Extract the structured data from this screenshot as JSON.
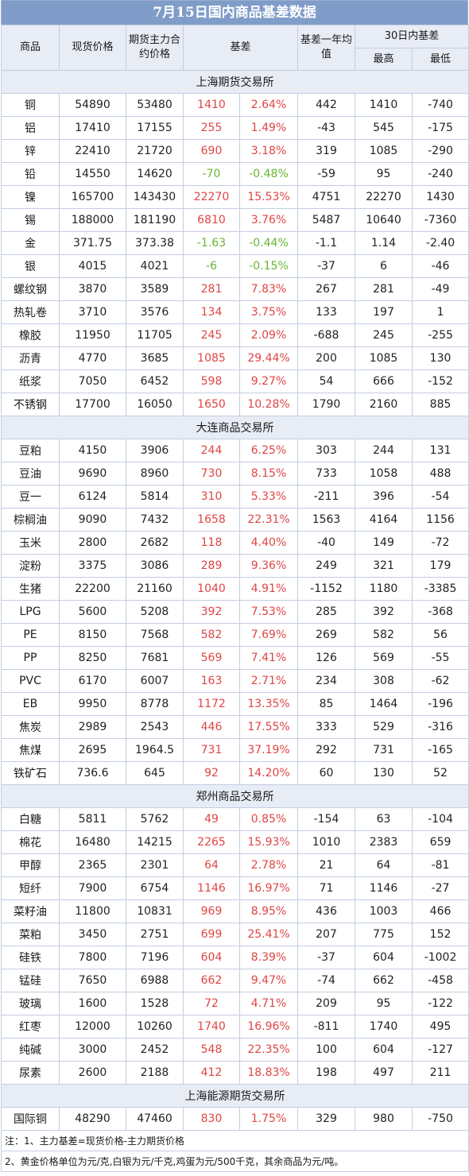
{
  "title": "7月15日国内商品基差数据",
  "headers": {
    "commodity": "商品",
    "spot": "现货价格",
    "futures": "期货主力合约价格",
    "basis": "基差",
    "avg_year": "基差一年均值",
    "range30": "30日内基差",
    "high": "最高",
    "low": "最低"
  },
  "colors": {
    "positive": "#e04545",
    "negative": "#66b533",
    "header_bg": "#7f9dc8"
  },
  "sections": [
    {
      "name": "上海期货交易所",
      "rows": [
        [
          "铜",
          "54890",
          "53480",
          "1410",
          "2.64%",
          "442",
          "1410",
          "-740"
        ],
        [
          "铝",
          "17410",
          "17155",
          "255",
          "1.49%",
          "-43",
          "545",
          "-175"
        ],
        [
          "锌",
          "22410",
          "21720",
          "690",
          "3.18%",
          "319",
          "1085",
          "-290"
        ],
        [
          "铅",
          "14550",
          "14620",
          "-70",
          "-0.48%",
          "-59",
          "95",
          "-240"
        ],
        [
          "镍",
          "165700",
          "143430",
          "22270",
          "15.53%",
          "4751",
          "22270",
          "1430"
        ],
        [
          "锡",
          "188000",
          "181190",
          "6810",
          "3.76%",
          "5487",
          "10640",
          "-7360"
        ],
        [
          "金",
          "371.75",
          "373.38",
          "-1.63",
          "-0.44%",
          "-1.1",
          "1.14",
          "-2.40"
        ],
        [
          "银",
          "4015",
          "4021",
          "-6",
          "-0.15%",
          "-37",
          "6",
          "-46"
        ],
        [
          "螺纹钢",
          "3870",
          "3589",
          "281",
          "7.83%",
          "267",
          "281",
          "-49"
        ],
        [
          "热轧卷",
          "3710",
          "3576",
          "134",
          "3.75%",
          "133",
          "197",
          "1"
        ],
        [
          "橡胶",
          "11950",
          "11705",
          "245",
          "2.09%",
          "-688",
          "245",
          "-255"
        ],
        [
          "沥青",
          "4770",
          "3685",
          "1085",
          "29.44%",
          "200",
          "1085",
          "130"
        ],
        [
          "纸浆",
          "7050",
          "6452",
          "598",
          "9.27%",
          "54",
          "666",
          "-152"
        ],
        [
          "不锈钢",
          "17700",
          "16050",
          "1650",
          "10.28%",
          "1790",
          "2160",
          "885"
        ]
      ]
    },
    {
      "name": "大连商品交易所",
      "rows": [
        [
          "豆粕",
          "4150",
          "3906",
          "244",
          "6.25%",
          "303",
          "244",
          "131"
        ],
        [
          "豆油",
          "9690",
          "8960",
          "730",
          "8.15%",
          "733",
          "1058",
          "488"
        ],
        [
          "豆一",
          "6124",
          "5814",
          "310",
          "5.33%",
          "-211",
          "396",
          "-54"
        ],
        [
          "棕榈油",
          "9090",
          "7432",
          "1658",
          "22.31%",
          "1563",
          "4164",
          "1156"
        ],
        [
          "玉米",
          "2800",
          "2682",
          "118",
          "4.40%",
          "-40",
          "149",
          "-72"
        ],
        [
          "淀粉",
          "3375",
          "3086",
          "289",
          "9.36%",
          "249",
          "321",
          "179"
        ],
        [
          "生猪",
          "22200",
          "21160",
          "1040",
          "4.91%",
          "-1152",
          "1180",
          "-3385"
        ],
        [
          "LPG",
          "5600",
          "5208",
          "392",
          "7.53%",
          "285",
          "392",
          "-368"
        ],
        [
          "PE",
          "8150",
          "7568",
          "582",
          "7.69%",
          "269",
          "582",
          "56"
        ],
        [
          "PP",
          "8250",
          "7681",
          "569",
          "7.41%",
          "126",
          "569",
          "-55"
        ],
        [
          "PVC",
          "6170",
          "6007",
          "163",
          "2.71%",
          "234",
          "308",
          "-62"
        ],
        [
          "EB",
          "9950",
          "8778",
          "1172",
          "13.35%",
          "85",
          "1464",
          "-196"
        ],
        [
          "焦炭",
          "2989",
          "2543",
          "446",
          "17.55%",
          "333",
          "529",
          "-316"
        ],
        [
          "焦煤",
          "2695",
          "1964.5",
          "731",
          "37.19%",
          "292",
          "731",
          "-165"
        ],
        [
          "铁矿石",
          "736.6",
          "645",
          "92",
          "14.20%",
          "60",
          "130",
          "52"
        ]
      ]
    },
    {
      "name": "郑州商品交易所",
      "rows": [
        [
          "白糖",
          "5811",
          "5762",
          "49",
          "0.85%",
          "-154",
          "63",
          "-104"
        ],
        [
          "棉花",
          "16480",
          "14215",
          "2265",
          "15.93%",
          "1010",
          "2383",
          "659"
        ],
        [
          "甲醇",
          "2365",
          "2301",
          "64",
          "2.78%",
          "21",
          "64",
          "-81"
        ],
        [
          "短纤",
          "7900",
          "6754",
          "1146",
          "16.97%",
          "71",
          "1146",
          "-27"
        ],
        [
          "菜籽油",
          "11800",
          "10831",
          "969",
          "8.95%",
          "436",
          "1003",
          "466"
        ],
        [
          "菜粕",
          "3450",
          "2751",
          "699",
          "25.41%",
          "207",
          "775",
          "152"
        ],
        [
          "硅铁",
          "7800",
          "7196",
          "604",
          "8.39%",
          "-37",
          "604",
          "-1002"
        ],
        [
          "锰硅",
          "7650",
          "6988",
          "662",
          "9.47%",
          "-74",
          "662",
          "-458"
        ],
        [
          "玻璃",
          "1600",
          "1528",
          "72",
          "4.71%",
          "209",
          "95",
          "-122"
        ],
        [
          "红枣",
          "12000",
          "10260",
          "1740",
          "16.96%",
          "-811",
          "1740",
          "495"
        ],
        [
          "纯碱",
          "3000",
          "2452",
          "548",
          "22.35%",
          "100",
          "604",
          "-127"
        ],
        [
          "尿素",
          "2600",
          "2188",
          "412",
          "18.83%",
          "198",
          "497",
          "211"
        ]
      ]
    },
    {
      "name": "上海能源期货交易所",
      "rows": [
        [
          "国际铜",
          "48290",
          "47460",
          "830",
          "1.75%",
          "329",
          "980",
          "-750"
        ]
      ]
    }
  ],
  "notes": [
    "注：1、主力基差=现货价格-主力期货价格",
    "2、黄金价格单位为元/克,白银为元/千克,鸡蛋为元/500千克，其余商品为元/吨。"
  ]
}
